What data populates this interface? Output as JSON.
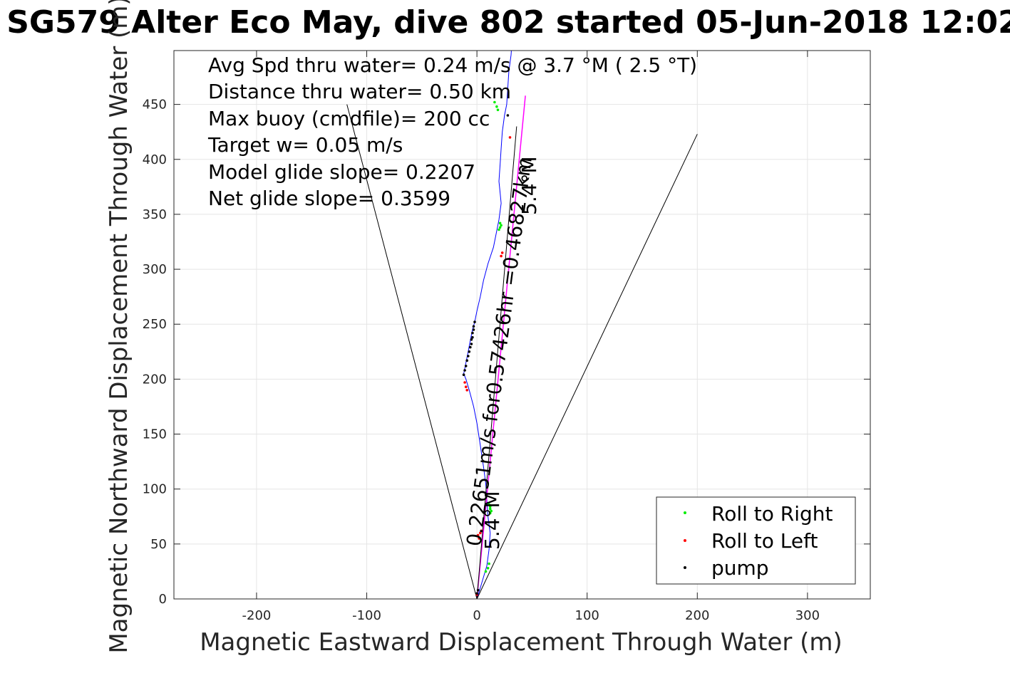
{
  "chart_data": {
    "type": "line",
    "title": "SG579 Alter Eco May, dive 802 started 05-Jun-2018 12:02",
    "xlabel": "Magnetic Eastward Displacement Through Water (m)",
    "ylabel": "Magnetic Northward Displacement Through Water (m)",
    "xlim": [
      -275,
      357
    ],
    "ylim": [
      0,
      499
    ],
    "xticks": [
      -200,
      -100,
      0,
      100,
      200,
      300
    ],
    "yticks": [
      0,
      50,
      100,
      150,
      200,
      250,
      300,
      350,
      400,
      450
    ],
    "grid": true,
    "stats": [
      "Avg Spd thru water=  0.24 m/s @   3.7 °M (  2.5 °T)",
      "Distance thru water=  0.50 km",
      "Max buoy (cmdfile)= 200 cc",
      "Target w= 0.05 m/s",
      "Model glide slope= 0.2207",
      "Net glide slope= 0.3599"
    ],
    "annotations": [
      {
        "text": "0.22651m/s for0.57426hr =0.46827km",
        "x": 10,
        "y": 50
      },
      {
        "text": "5.4°M",
        "x": 25,
        "y": 50
      },
      {
        "text": "5.4°M",
        "x": 57,
        "y": 350
      }
    ],
    "legend": {
      "placement": "bottom-right",
      "entries": [
        {
          "label": "Roll to Right",
          "color": "#00ee00"
        },
        {
          "label": "Roll to Left",
          "color": "#ff0000"
        },
        {
          "label": "pump",
          "color": "#000000"
        }
      ]
    },
    "series": [
      {
        "kind": "track",
        "color": "#0000ff",
        "x": [
          0,
          3,
          6,
          9,
          11,
          12,
          10,
          9,
          8,
          6,
          3,
          0,
          -3,
          -7,
          -10,
          -12,
          -10,
          -8,
          -6,
          -4,
          -2,
          0,
          3,
          6,
          10,
          15,
          18,
          20,
          22,
          21,
          20,
          21,
          22,
          23,
          25,
          27,
          28,
          29,
          31,
          32
        ],
        "y": [
          0,
          10,
          20,
          30,
          45,
          60,
          75,
          90,
          105,
          120,
          140,
          160,
          175,
          190,
          200,
          205,
          215,
          225,
          235,
          245,
          252,
          262,
          275,
          290,
          305,
          320,
          335,
          345,
          360,
          370,
          380,
          395,
          410,
          425,
          440,
          450,
          465,
          480,
          495,
          510
        ]
      },
      {
        "kind": "direct",
        "color": "#ff00ff",
        "x": [
          0,
          44
        ],
        "y": [
          0,
          458
        ]
      },
      {
        "kind": "cone",
        "color": "#000000",
        "x": [
          -118,
          0,
          200
        ],
        "y": [
          450,
          0,
          423
        ]
      },
      {
        "kind": "heading",
        "color": "#000000",
        "x": [
          0,
          36
        ],
        "y": [
          0,
          430
        ]
      }
    ],
    "markers": {
      "roll_right": {
        "color": "#00ee00",
        "x": [
          8,
          10,
          11,
          12,
          12,
          11,
          12,
          13,
          20,
          21,
          22,
          21,
          19,
          18,
          16
        ],
        "y": [
          25,
          28,
          32,
          82,
          84,
          86,
          78,
          80,
          336,
          338,
          340,
          342,
          445,
          448,
          452
        ]
      },
      "roll_left": {
        "color": "#ff0000",
        "x": [
          -9,
          -10,
          -11,
          2,
          1,
          0,
          3,
          4,
          22,
          23,
          30
        ],
        "y": [
          190,
          193,
          197,
          55,
          58,
          4,
          60,
          62,
          312,
          315,
          420
        ]
      },
      "pump": {
        "color": "#000000",
        "x": [
          -12,
          -11,
          -10,
          -9,
          -8,
          -7,
          -6,
          -5,
          -5,
          -4,
          -4,
          -3,
          -3,
          -2,
          0,
          1,
          28
        ],
        "y": [
          204,
          208,
          212,
          217,
          221,
          225,
          229,
          232,
          236,
          238,
          242,
          245,
          248,
          252,
          5,
          8,
          440
        ]
      }
    }
  }
}
